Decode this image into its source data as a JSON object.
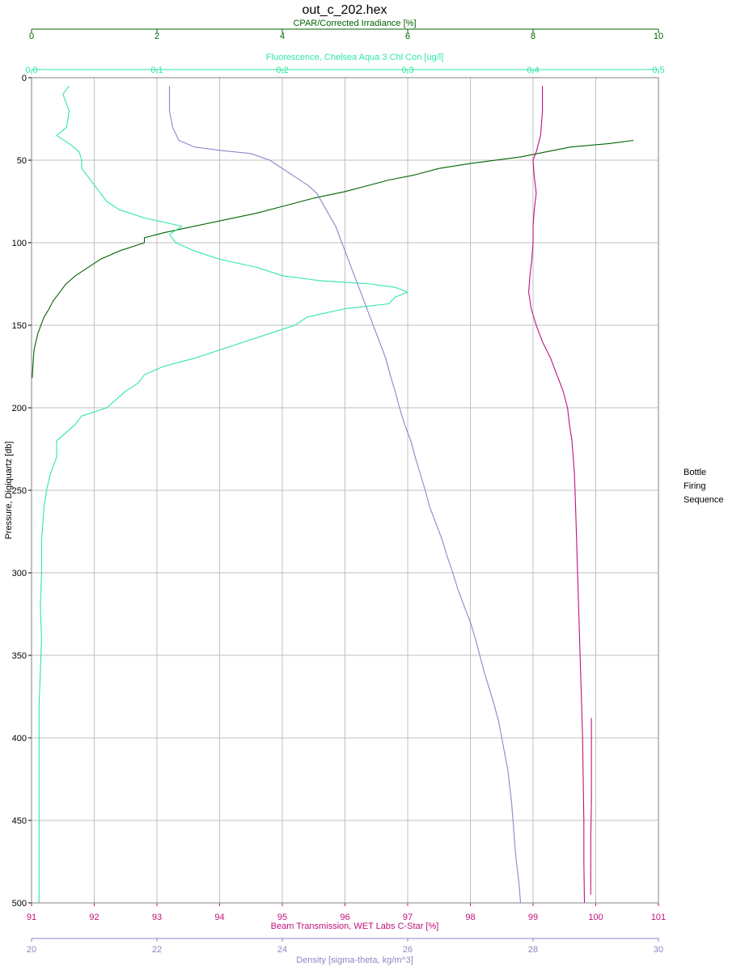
{
  "chart_data": {
    "type": "line",
    "title": "out_c_202.hex",
    "y_axis": {
      "label": "Pressure, Digiquartz [db]",
      "range": [
        0,
        500
      ],
      "inverted": true,
      "ticks": [
        "0",
        "50",
        "100",
        "150",
        "200",
        "250",
        "300",
        "350",
        "400",
        "450",
        "500"
      ]
    },
    "x_axes": [
      {
        "key": "cpar",
        "position": "top-outer",
        "label": "CPAR/Corrected Irradiance [%]",
        "color": "#006400",
        "range": [
          0,
          10
        ],
        "ticks": [
          "0",
          "2",
          "4",
          "6",
          "8",
          "10"
        ]
      },
      {
        "key": "fluorescence",
        "position": "top-inner",
        "label": "Fluorescence, Chelsea Aqua 3 Chl Con [ug/l]",
        "color": "#2ee8a0",
        "range": [
          0,
          0.5
        ],
        "ticks": [
          "0,0",
          "0,1",
          "0,2",
          "0,3",
          "0,4",
          "0,5"
        ]
      },
      {
        "key": "beam",
        "position": "bottom-inner",
        "label": "Beam Transmission, WET Labs C-Star [%]",
        "color": "#c0107a",
        "range": [
          91,
          101
        ],
        "ticks": [
          "91",
          "92",
          "93",
          "94",
          "95",
          "96",
          "97",
          "98",
          "99",
          "100",
          "101"
        ]
      },
      {
        "key": "density",
        "position": "bottom-outer",
        "label": "Density [sigma-theta, kg/m^3]",
        "color": "#8888c8",
        "range": [
          20,
          30
        ],
        "ticks": [
          "20",
          "22",
          "24",
          "26",
          "28",
          "30"
        ]
      }
    ],
    "grid": true,
    "side_note": [
      "Bottle",
      "Firing",
      "Sequence"
    ],
    "series": [
      {
        "axis": "cpar",
        "color": "#006400",
        "points": [
          [
            9.6,
            38
          ],
          [
            9.2,
            40
          ],
          [
            8.6,
            42
          ],
          [
            8.2,
            45
          ],
          [
            7.8,
            48
          ],
          [
            7.0,
            52
          ],
          [
            6.5,
            55
          ],
          [
            6.1,
            59
          ],
          [
            5.7,
            62
          ],
          [
            5.4,
            65
          ],
          [
            5.0,
            69
          ],
          [
            4.5,
            73
          ],
          [
            4.0,
            78
          ],
          [
            3.6,
            82
          ],
          [
            3.1,
            86
          ],
          [
            2.6,
            90
          ],
          [
            2.1,
            94
          ],
          [
            1.8,
            97
          ],
          [
            1.8,
            100
          ],
          [
            1.4,
            105
          ],
          [
            1.1,
            110
          ],
          [
            0.9,
            115
          ],
          [
            0.7,
            120
          ],
          [
            0.55,
            125
          ],
          [
            0.45,
            130
          ],
          [
            0.35,
            135
          ],
          [
            0.28,
            140
          ],
          [
            0.2,
            145
          ],
          [
            0.15,
            150
          ],
          [
            0.1,
            155
          ],
          [
            0.07,
            160
          ],
          [
            0.04,
            165
          ],
          [
            0.03,
            170
          ],
          [
            0.02,
            176
          ],
          [
            0.01,
            182
          ]
        ]
      },
      {
        "axis": "fluorescence",
        "color": "#2ee8a0",
        "points": [
          [
            0.03,
            5
          ],
          [
            0.025,
            10
          ],
          [
            0.03,
            20
          ],
          [
            0.028,
            30
          ],
          [
            0.02,
            35
          ],
          [
            0.03,
            40
          ],
          [
            0.038,
            45
          ],
          [
            0.04,
            50
          ],
          [
            0.04,
            55
          ],
          [
            0.045,
            60
          ],
          [
            0.05,
            65
          ],
          [
            0.055,
            70
          ],
          [
            0.06,
            75
          ],
          [
            0.07,
            80
          ],
          [
            0.09,
            85
          ],
          [
            0.12,
            90
          ],
          [
            0.11,
            95
          ],
          [
            0.115,
            100
          ],
          [
            0.13,
            105
          ],
          [
            0.15,
            110
          ],
          [
            0.18,
            115
          ],
          [
            0.2,
            120
          ],
          [
            0.23,
            123
          ],
          [
            0.27,
            125
          ],
          [
            0.29,
            127
          ],
          [
            0.3,
            130
          ],
          [
            0.29,
            133
          ],
          [
            0.285,
            137
          ],
          [
            0.25,
            140
          ],
          [
            0.22,
            145
          ],
          [
            0.21,
            150
          ],
          [
            0.19,
            155
          ],
          [
            0.17,
            160
          ],
          [
            0.15,
            165
          ],
          [
            0.13,
            170
          ],
          [
            0.105,
            175
          ],
          [
            0.09,
            180
          ],
          [
            0.085,
            185
          ],
          [
            0.075,
            190
          ],
          [
            0.06,
            200
          ],
          [
            0.04,
            205
          ],
          [
            0.035,
            210
          ],
          [
            0.02,
            220
          ],
          [
            0.02,
            230
          ],
          [
            0.015,
            240
          ],
          [
            0.012,
            250
          ],
          [
            0.01,
            260
          ],
          [
            0.008,
            280
          ],
          [
            0.008,
            300
          ],
          [
            0.007,
            320
          ],
          [
            0.008,
            340
          ],
          [
            0.007,
            360
          ],
          [
            0.006,
            380
          ],
          [
            0.006,
            400
          ],
          [
            0.006,
            420
          ],
          [
            0.006,
            440
          ],
          [
            0.006,
            460
          ],
          [
            0.006,
            480
          ],
          [
            0.006,
            500
          ]
        ]
      },
      {
        "axis": "beam",
        "color": "#c0107a",
        "points": [
          [
            99.15,
            5
          ],
          [
            99.15,
            20
          ],
          [
            99.12,
            35
          ],
          [
            99.05,
            45
          ],
          [
            99.0,
            50
          ],
          [
            99.02,
            60
          ],
          [
            99.05,
            70
          ],
          [
            99.02,
            80
          ],
          [
            99.0,
            90
          ],
          [
            99.0,
            100
          ],
          [
            98.98,
            110
          ],
          [
            98.95,
            120
          ],
          [
            98.93,
            130
          ],
          [
            98.97,
            140
          ],
          [
            99.05,
            150
          ],
          [
            99.15,
            160
          ],
          [
            99.28,
            170
          ],
          [
            99.38,
            180
          ],
          [
            99.48,
            190
          ],
          [
            99.55,
            200
          ],
          [
            99.58,
            210
          ],
          [
            99.62,
            220
          ],
          [
            99.64,
            230
          ],
          [
            99.66,
            240
          ],
          [
            99.67,
            250
          ],
          [
            99.69,
            275
          ],
          [
            99.71,
            300
          ],
          [
            99.73,
            325
          ],
          [
            99.75,
            350
          ],
          [
            99.77,
            375
          ],
          [
            99.79,
            400
          ],
          [
            99.8,
            425
          ],
          [
            99.81,
            450
          ],
          [
            99.81,
            475
          ],
          [
            99.82,
            500
          ]
        ]
      },
      {
        "axis": "beam",
        "color": "#c0107a",
        "points": [
          [
            99.93,
            388
          ],
          [
            99.93,
            400
          ],
          [
            99.93,
            420
          ],
          [
            99.93,
            440
          ],
          [
            99.92,
            460
          ],
          [
            99.92,
            480
          ],
          [
            99.92,
            495
          ]
        ]
      },
      {
        "axis": "density",
        "color": "#8888c8",
        "points": [
          [
            22.2,
            5
          ],
          [
            22.2,
            20
          ],
          [
            22.25,
            30
          ],
          [
            22.35,
            38
          ],
          [
            22.6,
            42
          ],
          [
            23.0,
            44
          ],
          [
            23.5,
            46
          ],
          [
            23.8,
            50
          ],
          [
            24.0,
            55
          ],
          [
            24.2,
            60
          ],
          [
            24.4,
            65
          ],
          [
            24.55,
            70
          ],
          [
            24.7,
            80
          ],
          [
            24.85,
            90
          ],
          [
            24.95,
            100
          ],
          [
            25.05,
            110
          ],
          [
            25.15,
            120
          ],
          [
            25.25,
            130
          ],
          [
            25.35,
            140
          ],
          [
            25.45,
            150
          ],
          [
            25.55,
            160
          ],
          [
            25.65,
            170
          ],
          [
            25.72,
            180
          ],
          [
            25.8,
            190
          ],
          [
            25.87,
            200
          ],
          [
            25.95,
            210
          ],
          [
            26.05,
            220
          ],
          [
            26.12,
            230
          ],
          [
            26.2,
            240
          ],
          [
            26.28,
            250
          ],
          [
            26.35,
            260
          ],
          [
            26.45,
            270
          ],
          [
            26.55,
            280
          ],
          [
            26.63,
            290
          ],
          [
            26.72,
            300
          ],
          [
            26.8,
            310
          ],
          [
            26.9,
            320
          ],
          [
            27.0,
            330
          ],
          [
            27.08,
            340
          ],
          [
            27.15,
            350
          ],
          [
            27.22,
            360
          ],
          [
            27.3,
            370
          ],
          [
            27.38,
            380
          ],
          [
            27.45,
            390
          ],
          [
            27.5,
            400
          ],
          [
            27.55,
            410
          ],
          [
            27.6,
            420
          ],
          [
            27.63,
            430
          ],
          [
            27.66,
            440
          ],
          [
            27.68,
            450
          ],
          [
            27.7,
            460
          ],
          [
            27.72,
            470
          ],
          [
            27.75,
            480
          ],
          [
            27.78,
            490
          ],
          [
            27.8,
            500
          ]
        ]
      }
    ]
  }
}
